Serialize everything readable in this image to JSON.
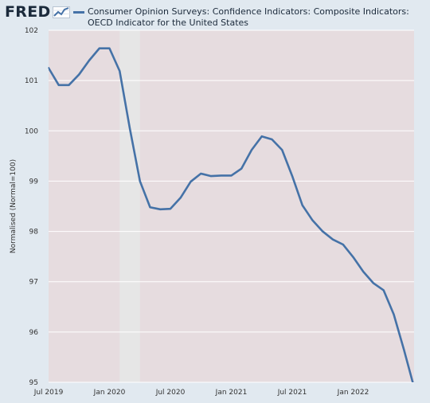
{
  "brand": {
    "logo_text": "FRED",
    "logo_icon": "line-chart-icon"
  },
  "legend": {
    "label": "Consumer Opinion Surveys: Confidence Indicators: Composite Indicators: OECD Indicator for the United States",
    "color": "#4572a7"
  },
  "colors": {
    "frame": "#e1e9f0",
    "plot_background": "#e6dcdf",
    "recession_band": "#e6e6e6",
    "line": "#4572a7",
    "grid": "#ffffff"
  },
  "chart_data": {
    "type": "line",
    "title": "",
    "xlabel": "",
    "ylabel": "Normalised (Normal=100)",
    "ylim": [
      95,
      102
    ],
    "xlim": [
      "2019-07",
      "2022-07"
    ],
    "y_ticks": [
      95,
      96,
      97,
      98,
      99,
      100,
      101,
      102
    ],
    "x_ticks": [
      {
        "date": "2019-07",
        "label": "Jul 2019"
      },
      {
        "date": "2020-01",
        "label": "Jan 2020"
      },
      {
        "date": "2020-07",
        "label": "Jul 2020"
      },
      {
        "date": "2021-01",
        "label": "Jan 2021"
      },
      {
        "date": "2021-07",
        "label": "Jul 2021"
      },
      {
        "date": "2022-01",
        "label": "Jan 2022"
      }
    ],
    "grid": true,
    "recession": {
      "start": "2020-02",
      "end": "2020-04"
    },
    "series": [
      {
        "name": "Consumer Opinion Surveys: Confidence Indicators: Composite Indicators: OECD Indicator for the United States",
        "x": [
          "2019-07",
          "2019-08",
          "2019-09",
          "2019-10",
          "2019-11",
          "2019-12",
          "2020-01",
          "2020-02",
          "2020-03",
          "2020-04",
          "2020-05",
          "2020-06",
          "2020-07",
          "2020-08",
          "2020-09",
          "2020-10",
          "2020-11",
          "2020-12",
          "2021-01",
          "2021-02",
          "2021-03",
          "2021-04",
          "2021-05",
          "2021-06",
          "2021-07",
          "2021-08",
          "2021-09",
          "2021-10",
          "2021-11",
          "2021-12",
          "2022-01",
          "2022-02",
          "2022-03",
          "2022-04",
          "2022-05",
          "2022-06",
          "2022-07"
        ],
        "values": [
          101.25,
          100.91,
          100.91,
          101.12,
          101.4,
          101.64,
          101.64,
          101.19,
          100.05,
          99.0,
          98.48,
          98.44,
          98.45,
          98.67,
          98.99,
          99.15,
          99.1,
          99.11,
          99.11,
          99.25,
          99.62,
          99.89,
          99.83,
          99.62,
          99.1,
          98.52,
          98.22,
          98.0,
          97.84,
          97.74,
          97.49,
          97.2,
          96.97,
          96.83,
          96.35,
          95.65,
          94.9
        ]
      }
    ]
  }
}
